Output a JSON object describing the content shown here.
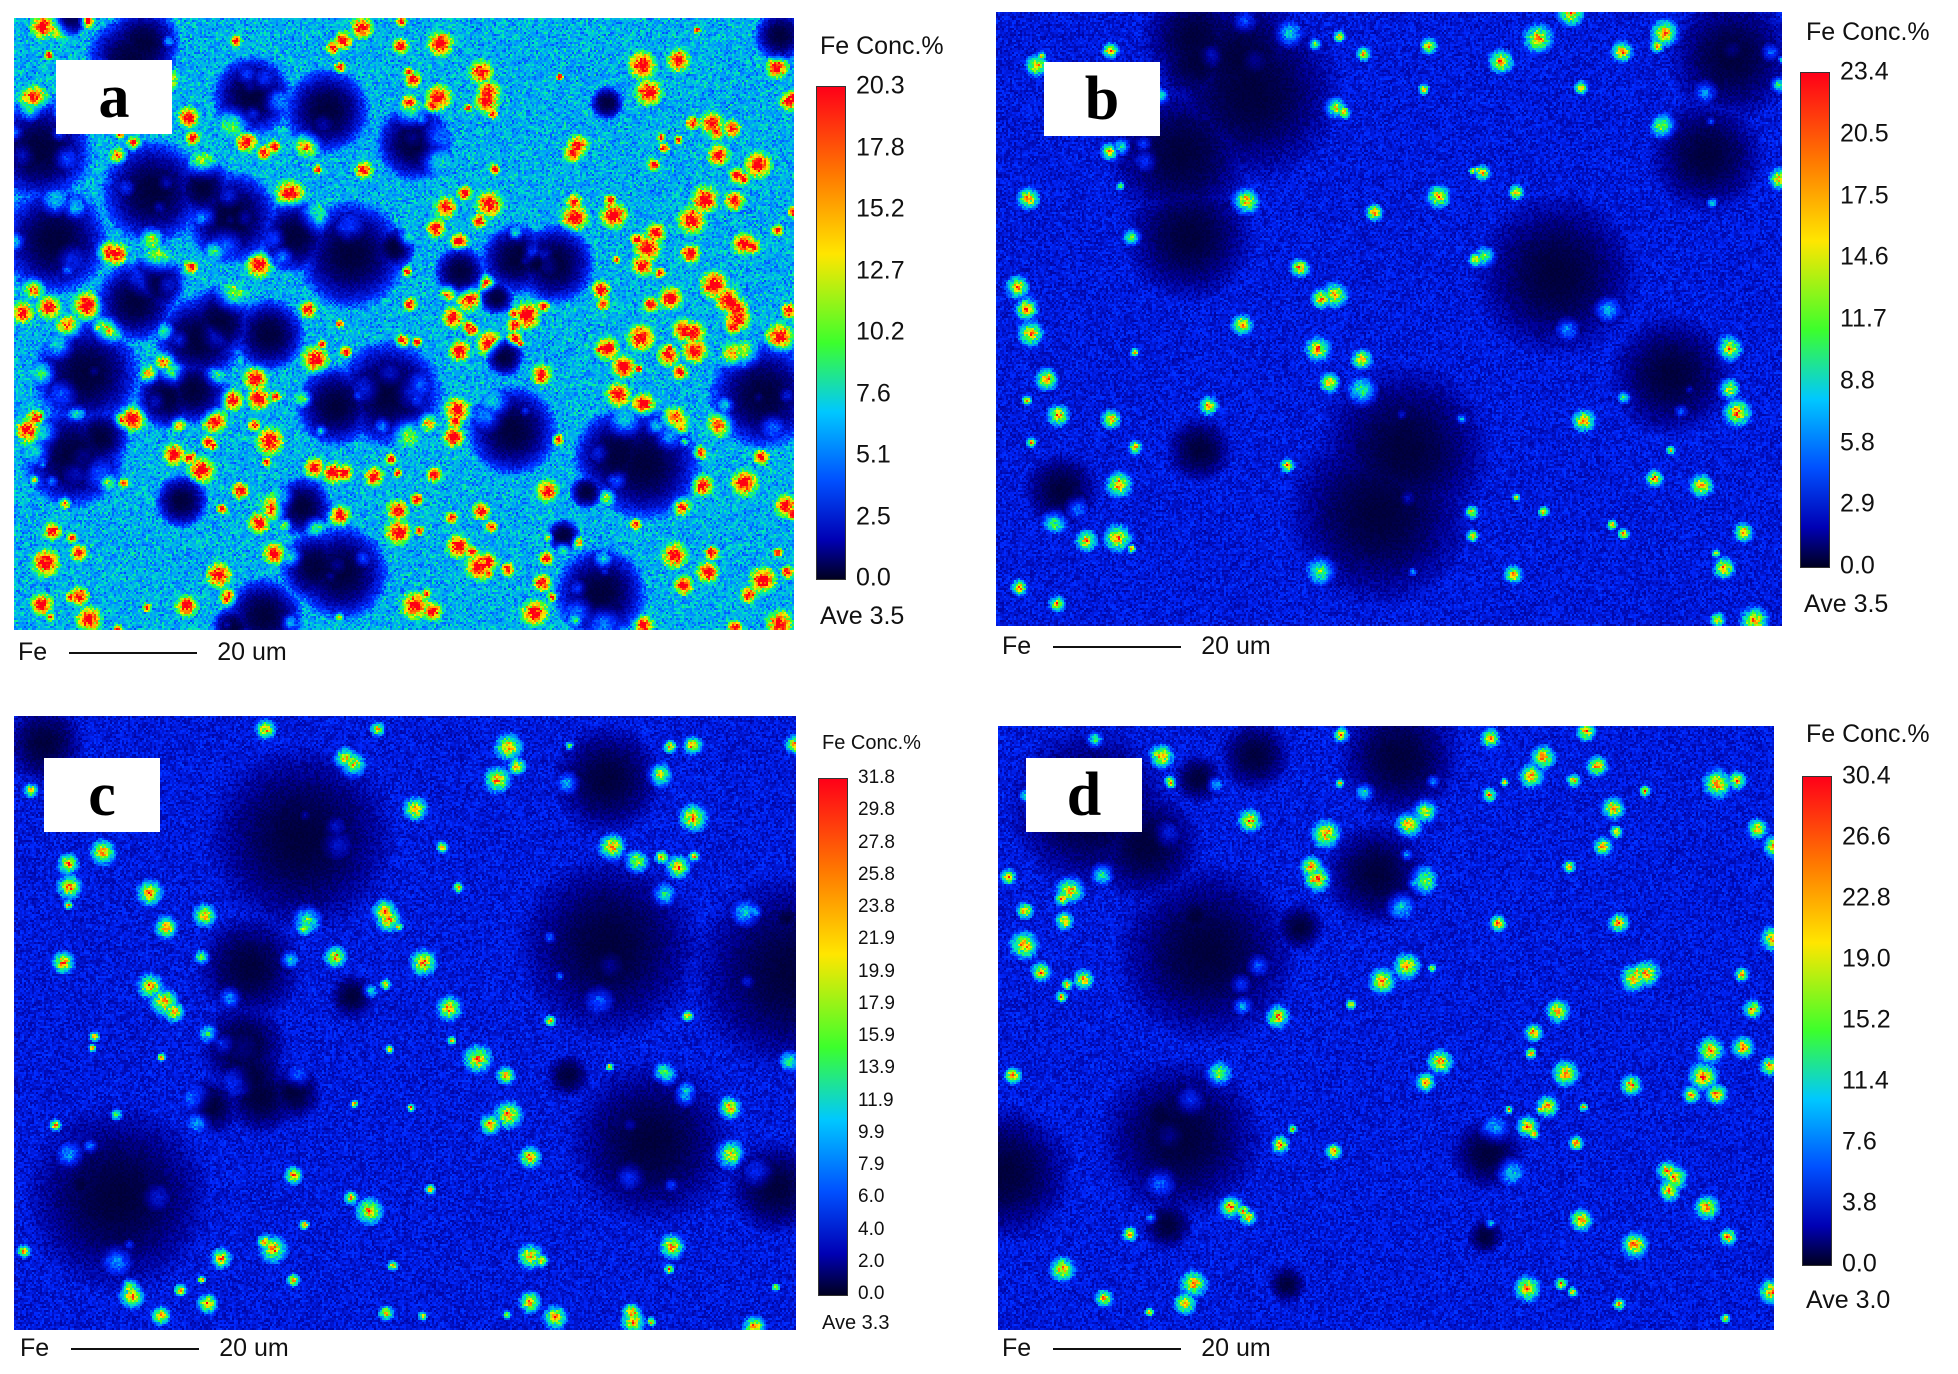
{
  "panels": [
    {
      "id": "a",
      "label": "a",
      "colorbar_title": "Fe  Conc.%",
      "ticks": [
        "20.3",
        "17.8",
        "15.2",
        "12.7",
        "10.2",
        "7.6",
        "5.1",
        "2.5",
        "0.0"
      ],
      "average": "Ave 3.5",
      "scale_element": "Fe",
      "scale_text": "20 um",
      "map_style": {
        "dark_blobs": 50,
        "hot_fraction": 0.35,
        "seed": 11
      }
    },
    {
      "id": "b",
      "label": "b",
      "colorbar_title": "Fe  Conc.%",
      "ticks": [
        "23.4",
        "20.5",
        "17.5",
        "14.6",
        "11.7",
        "8.8",
        "5.8",
        "2.9",
        "0.0"
      ],
      "average": "Ave 3.5",
      "scale_element": "Fe",
      "scale_text": "20 um",
      "map_style": {
        "dark_blobs": 14,
        "hot_fraction": 0.05,
        "seed": 23
      }
    },
    {
      "id": "c",
      "label": "c",
      "colorbar_title": "Fe  Conc.%",
      "ticks": [
        "31.8",
        "29.8",
        "27.8",
        "25.8",
        "23.8",
        "21.9",
        "19.9",
        "17.9",
        "15.9",
        "13.9",
        "11.9",
        "9.9",
        "7.9",
        "6.0",
        "4.0",
        "2.0",
        "0.0"
      ],
      "average": "Ave 3.3",
      "scale_element": "Fe",
      "scale_text": "20 um",
      "map_style": {
        "dark_blobs": 18,
        "hot_fraction": 0.08,
        "seed": 37
      }
    },
    {
      "id": "d",
      "label": "d",
      "colorbar_title": "Fe  Conc.%",
      "ticks": [
        "30.4",
        "26.6",
        "22.8",
        "19.0",
        "15.2",
        "11.4",
        "7.6",
        "3.8",
        "0.0"
      ],
      "average": "Ave 3.0",
      "scale_element": "Fe",
      "scale_text": "20 um",
      "map_style": {
        "dark_blobs": 16,
        "hot_fraction": 0.07,
        "seed": 53
      }
    }
  ]
}
